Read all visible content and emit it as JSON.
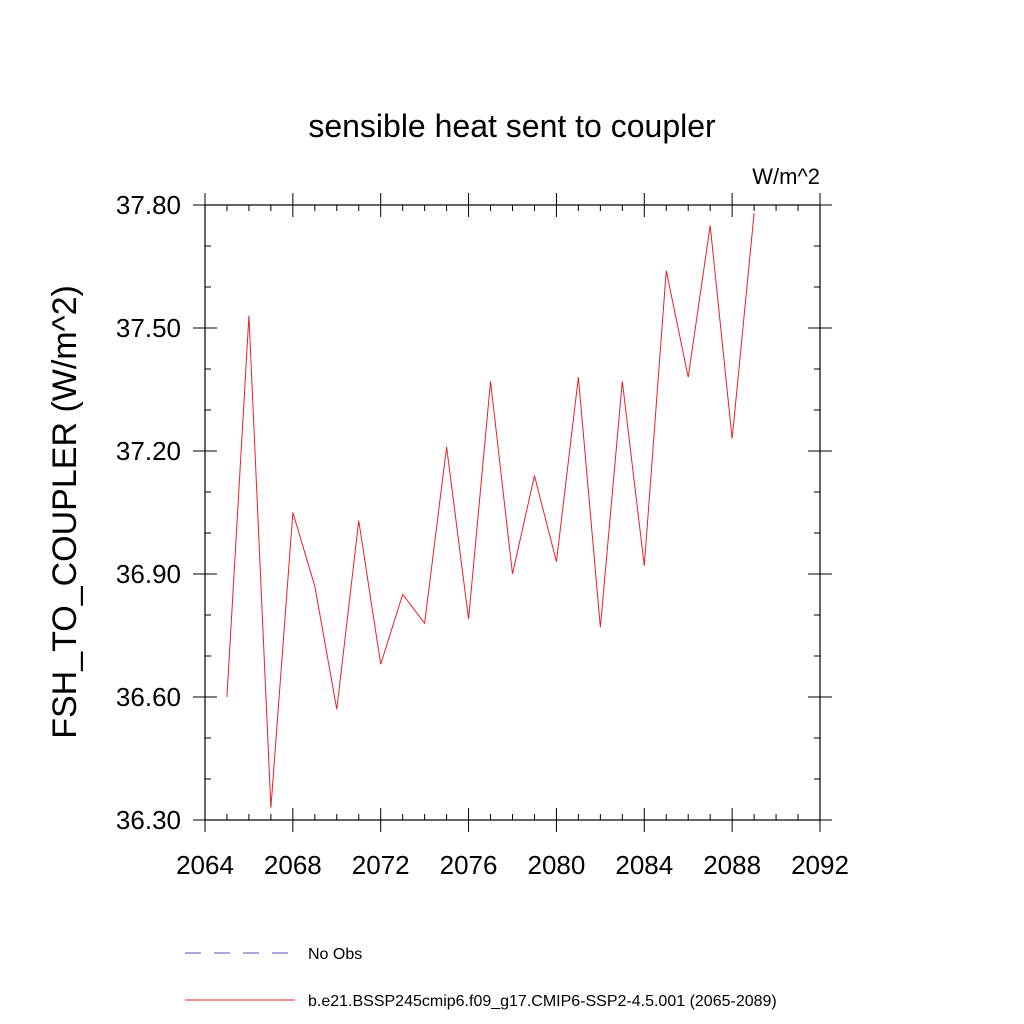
{
  "chart_data": {
    "type": "line",
    "title": "sensible heat sent to coupler",
    "units_label": "W/m^2",
    "ylabel": "FSH_TO_COUPLER  (W/m^2)",
    "xlabel": "",
    "xlim": [
      2064,
      2092
    ],
    "ylim": [
      36.3,
      37.8
    ],
    "x_ticks": [
      "2064",
      "2068",
      "2072",
      "2076",
      "2080",
      "2084",
      "2088",
      "2092"
    ],
    "y_ticks": [
      "36.30",
      "36.60",
      "36.90",
      "37.20",
      "37.50",
      "37.80"
    ],
    "grid": false,
    "legend_placement": "bottom",
    "series": [
      {
        "name": "No Obs",
        "color": "#5a4fa8",
        "dash": "dashed",
        "x": [],
        "values": []
      },
      {
        "name": "b.e21.BSSP245cmip6.f09_g17.CMIP6-SSP2-4.5.001 (2065-2089)",
        "color": "#e8202a",
        "dash": "solid",
        "x": [
          2065,
          2066,
          2067,
          2068,
          2069,
          2070,
          2071,
          2072,
          2073,
          2074,
          2075,
          2076,
          2077,
          2078,
          2079,
          2080,
          2081,
          2082,
          2083,
          2084,
          2085,
          2086,
          2087,
          2088,
          2089
        ],
        "values": [
          36.6,
          37.53,
          36.33,
          37.05,
          36.87,
          36.57,
          37.03,
          36.68,
          36.85,
          36.78,
          37.21,
          36.79,
          37.37,
          36.9,
          37.14,
          36.93,
          37.38,
          36.77,
          37.37,
          36.92,
          37.64,
          37.38,
          37.75,
          37.23,
          37.78
        ]
      }
    ]
  }
}
